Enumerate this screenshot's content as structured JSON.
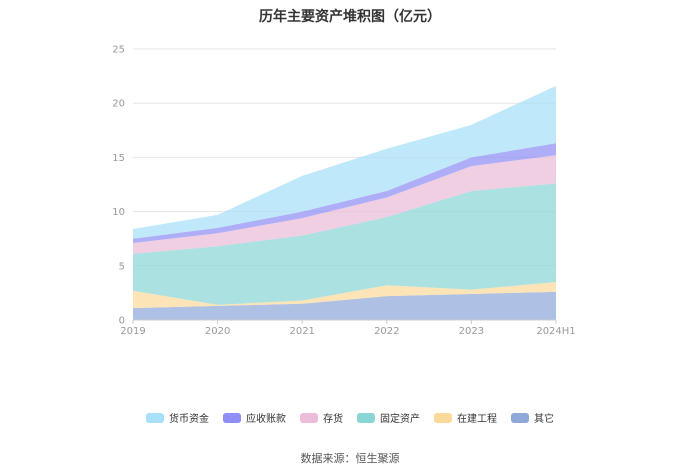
{
  "chart_data": {
    "type": "area",
    "stacked": true,
    "title": "历年主要资产堆积图（亿元）",
    "categories": [
      "2019",
      "2020",
      "2021",
      "2022",
      "2023",
      "2024H1"
    ],
    "ylim": [
      0,
      25
    ],
    "yticks": [
      0,
      5,
      10,
      15,
      20,
      25
    ],
    "grid": true,
    "legend_position": "bottom",
    "series": [
      {
        "name": "其它",
        "color": "#8fa8d8",
        "values": [
          1.1,
          1.3,
          1.5,
          2.2,
          2.4,
          2.6
        ]
      },
      {
        "name": "在建工程",
        "color": "#fbd99a",
        "values": [
          1.6,
          0.1,
          0.3,
          1.0,
          0.4,
          0.9
        ]
      },
      {
        "name": "固定资产",
        "color": "#8ad6d6",
        "values": [
          3.4,
          5.4,
          6.0,
          6.3,
          9.1,
          9.1
        ]
      },
      {
        "name": "存货",
        "color": "#ecbdd8",
        "values": [
          1.0,
          1.2,
          1.6,
          1.8,
          2.3,
          2.6
        ]
      },
      {
        "name": "应收账款",
        "color": "#8f8ef5",
        "values": [
          0.4,
          0.5,
          0.6,
          0.6,
          0.8,
          1.1
        ]
      },
      {
        "name": "货币资金",
        "color": "#a8dff9",
        "values": [
          0.9,
          1.2,
          3.3,
          3.9,
          3.0,
          5.3
        ]
      }
    ],
    "legend_order": [
      "货币资金",
      "应收账款",
      "存货",
      "固定资产",
      "在建工程",
      "其它"
    ]
  },
  "source_text": "数据来源：恒生聚源"
}
